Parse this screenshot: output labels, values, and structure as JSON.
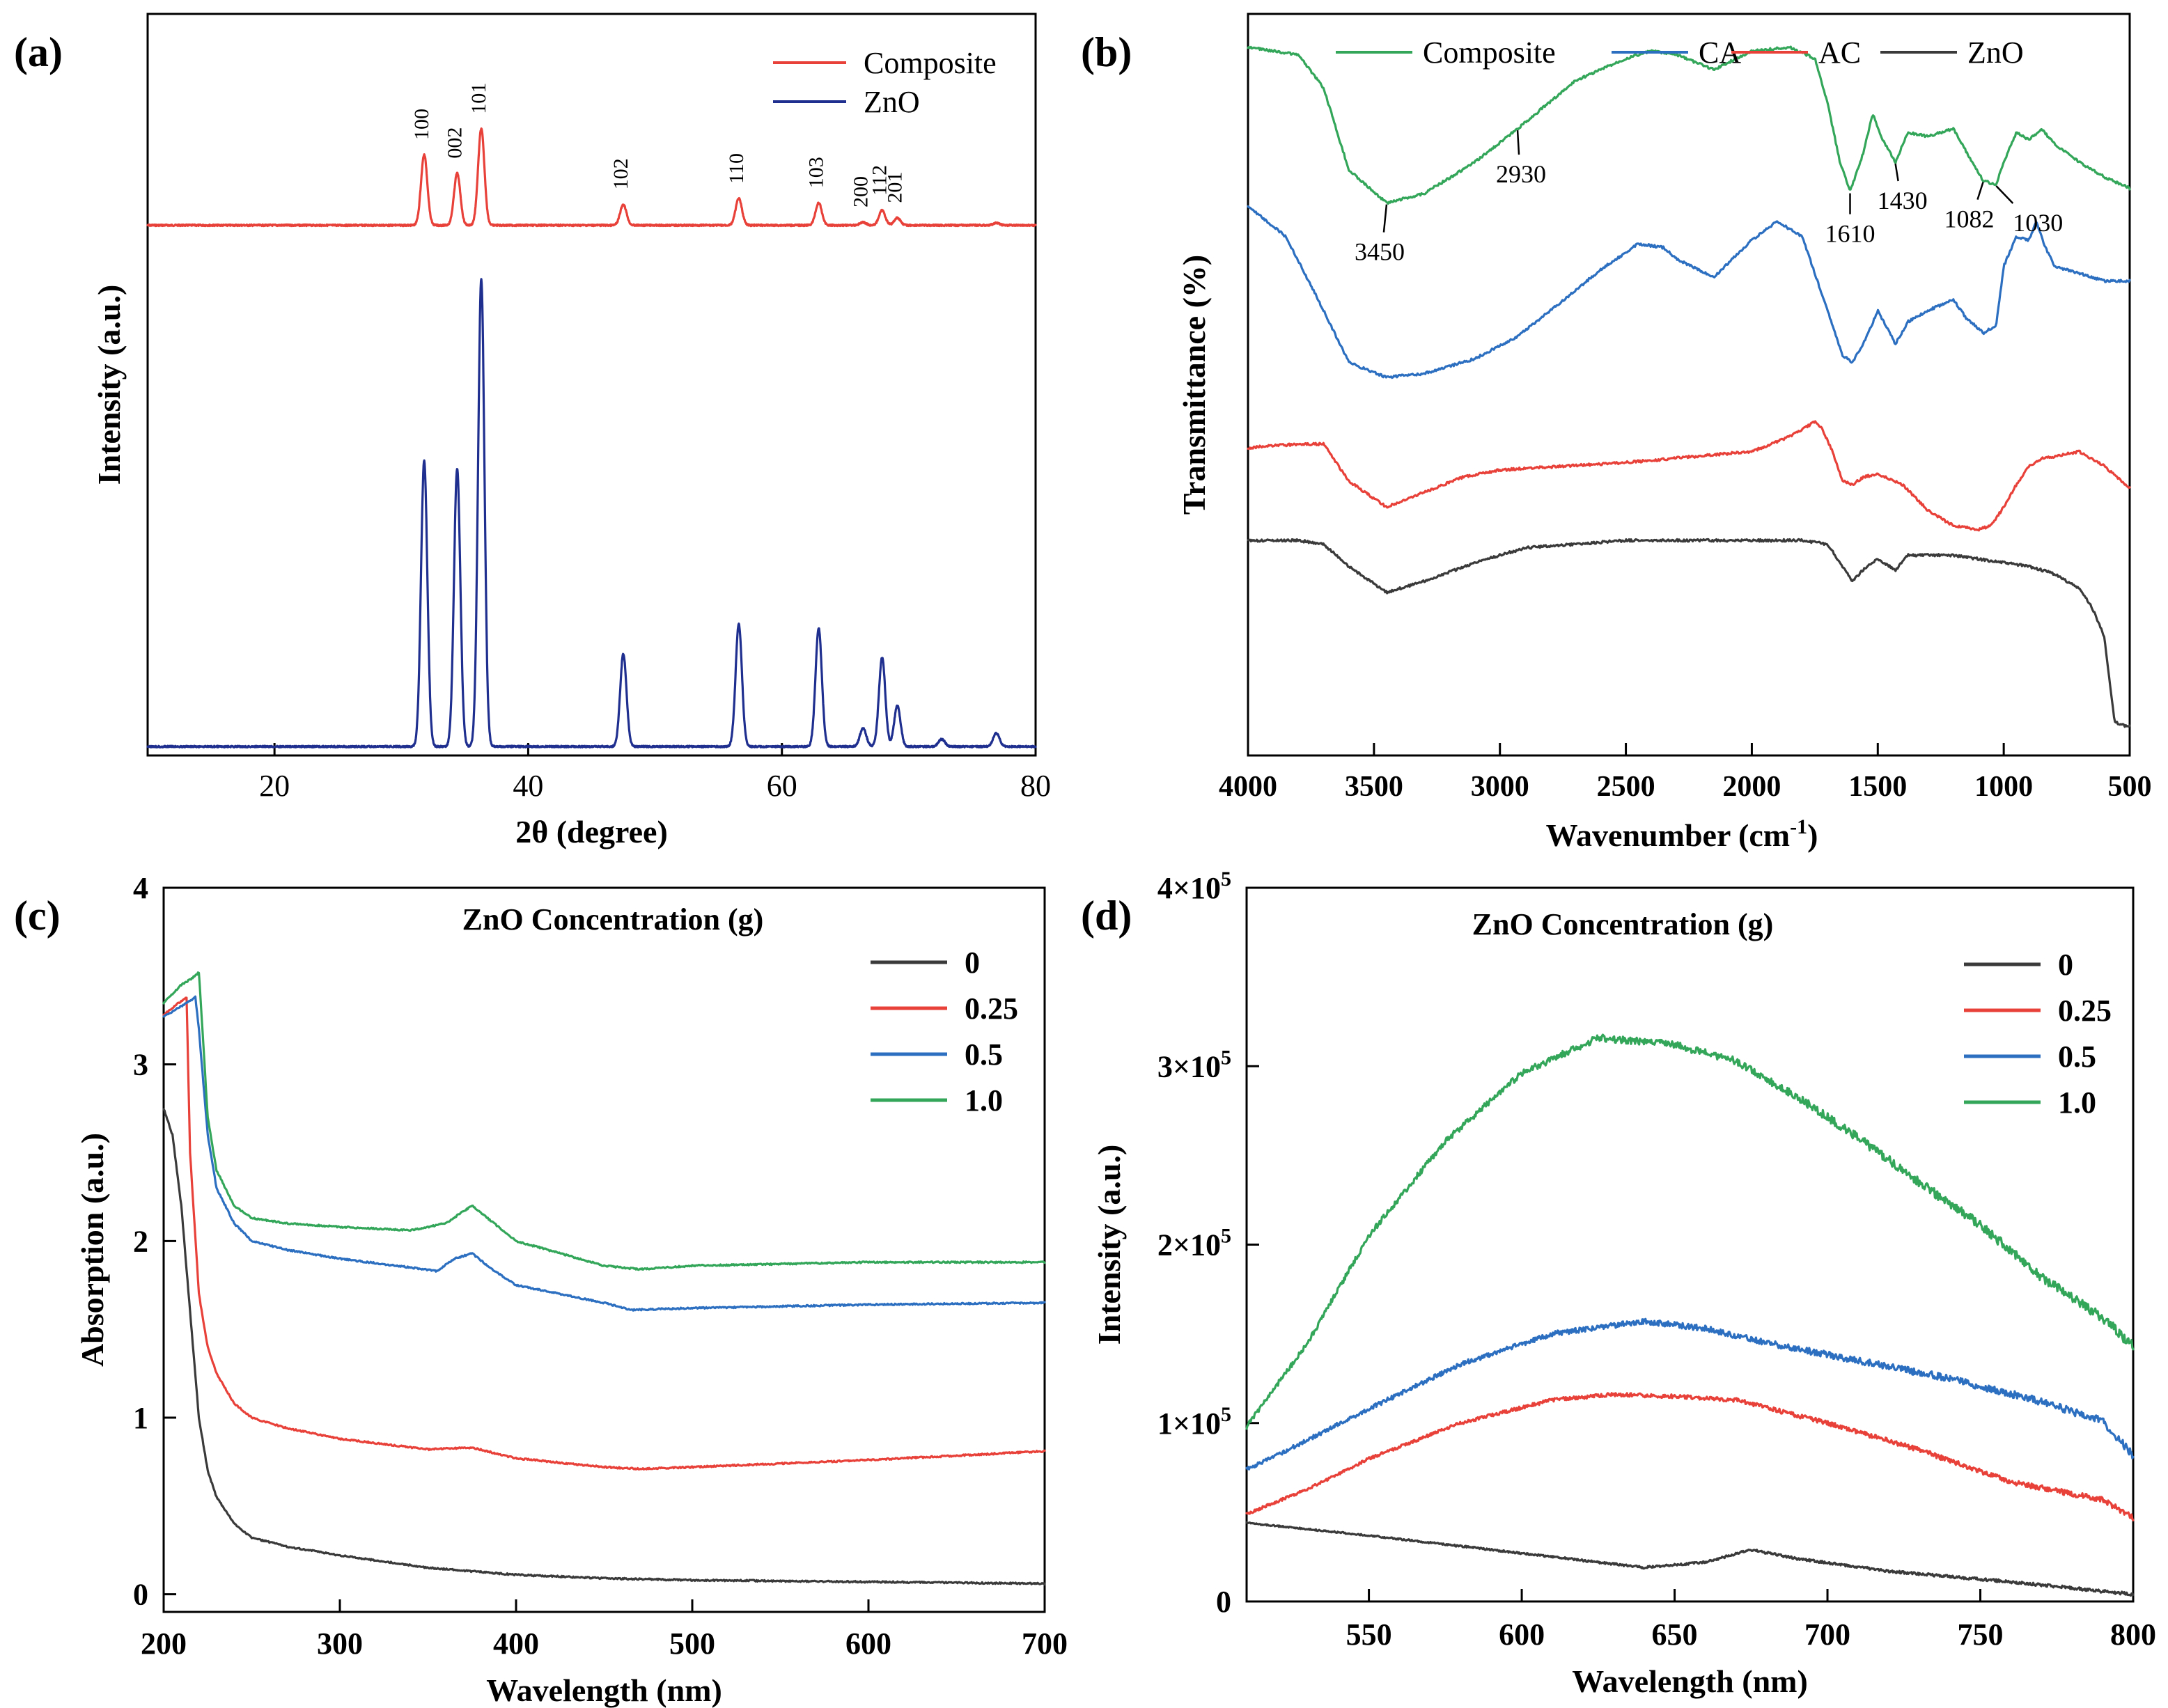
{
  "chart_data": [
    {
      "panel": "(a)",
      "type": "line",
      "xlabel": "2θ (degree)",
      "ylabel": "Intensity (a.u.)",
      "xlim": [
        10,
        80
      ],
      "ylim": [
        0,
        1
      ],
      "xticks": [
        20,
        40,
        60,
        80
      ],
      "yticks": [],
      "legend": [
        "Composite",
        "ZnO"
      ],
      "legend_position": "top-right",
      "annotations": [
        "100",
        "002",
        "101",
        "102",
        "110",
        "103",
        "200",
        "112",
        "201"
      ],
      "peaks": [
        31.8,
        34.4,
        36.3,
        47.5,
        56.6,
        62.9,
        66.4,
        67.9,
        69.1,
        72.6,
        76.9
      ],
      "series": [
        {
          "name": "Composite",
          "color": "#e8413a",
          "baseline": 0.715,
          "heights": [
            0.095,
            0.07,
            0.13,
            0.028,
            0.036,
            0.03,
            0.004,
            0.02,
            0.01,
            0.0,
            0.003
          ]
        },
        {
          "name": "ZnO",
          "color": "#1f2f8f",
          "baseline": 0.012,
          "heights": [
            0.385,
            0.375,
            0.63,
            0.125,
            0.165,
            0.16,
            0.025,
            0.12,
            0.055,
            0.01,
            0.018
          ]
        }
      ]
    },
    {
      "panel": "(b)",
      "type": "line",
      "xlabel": "Wavenumber (cm-1)",
      "xlabel_main": "Wavenumber (cm",
      "xlabel_sup": "-1",
      "xlabel_tail": ")",
      "ylabel": "Transmittance (%)",
      "xlim": [
        4000,
        500
      ],
      "ylim": [
        0,
        1
      ],
      "xticks": [
        4000,
        3500,
        3000,
        2500,
        2000,
        1500,
        1000,
        500
      ],
      "legend": [
        "Composite",
        "CA",
        "AC",
        "ZnO"
      ],
      "legend_position": "top",
      "annotations": [
        "3450",
        "2930",
        "1610",
        "1430",
        "1082",
        "1030"
      ],
      "series": [
        {
          "name": "Composite",
          "color": "#33a65a",
          "x": [
            4000,
            3800,
            3700,
            3600,
            3450,
            3300,
            3100,
            2930,
            2700,
            2500,
            2400,
            2300,
            2150,
            2000,
            1850,
            1750,
            1700,
            1650,
            1610,
            1560,
            1520,
            1480,
            1430,
            1380,
            1300,
            1200,
            1150,
            1082,
            1030,
            1000,
            950,
            900,
            850,
            800,
            700,
            600,
            500
          ],
          "y": [
            0.955,
            0.945,
            0.9,
            0.79,
            0.745,
            0.758,
            0.8,
            0.845,
            0.91,
            0.94,
            0.95,
            0.945,
            0.925,
            0.95,
            0.955,
            0.94,
            0.88,
            0.8,
            0.76,
            0.81,
            0.865,
            0.83,
            0.8,
            0.84,
            0.835,
            0.845,
            0.815,
            0.775,
            0.77,
            0.8,
            0.84,
            0.83,
            0.845,
            0.825,
            0.8,
            0.78,
            0.765
          ]
        },
        {
          "name": "CA",
          "color": "#2c6fc1",
          "x": [
            4000,
            3850,
            3700,
            3600,
            3450,
            3300,
            3100,
            2930,
            2800,
            2600,
            2450,
            2350,
            2300,
            2150,
            2000,
            1900,
            1800,
            1700,
            1640,
            1600,
            1550,
            1500,
            1430,
            1380,
            1300,
            1200,
            1150,
            1080,
            1030,
            1000,
            950,
            900,
            870,
            840,
            800,
            700,
            600,
            500
          ],
          "y": [
            0.74,
            0.7,
            0.6,
            0.53,
            0.51,
            0.515,
            0.535,
            0.565,
            0.6,
            0.655,
            0.69,
            0.685,
            0.67,
            0.645,
            0.695,
            0.72,
            0.7,
            0.6,
            0.54,
            0.53,
            0.56,
            0.6,
            0.555,
            0.585,
            0.6,
            0.615,
            0.59,
            0.57,
            0.58,
            0.66,
            0.7,
            0.695,
            0.72,
            0.69,
            0.66,
            0.65,
            0.64,
            0.64
          ]
        },
        {
          "name": "AC",
          "color": "#e8413a",
          "x": [
            4000,
            3800,
            3700,
            3600,
            3450,
            3300,
            3150,
            3000,
            2500,
            2000,
            1850,
            1750,
            1720,
            1680,
            1640,
            1600,
            1560,
            1500,
            1400,
            1300,
            1200,
            1100,
            1050,
            1000,
            950,
            900,
            850,
            700,
            600,
            500
          ],
          "y": [
            0.415,
            0.42,
            0.42,
            0.37,
            0.335,
            0.355,
            0.375,
            0.385,
            0.395,
            0.41,
            0.43,
            0.45,
            0.44,
            0.41,
            0.37,
            0.365,
            0.375,
            0.38,
            0.365,
            0.33,
            0.31,
            0.305,
            0.31,
            0.335,
            0.365,
            0.39,
            0.4,
            0.41,
            0.39,
            0.36
          ]
        },
        {
          "name": "ZnO",
          "color": "#3a3a3a",
          "x": [
            4000,
            3800,
            3700,
            3600,
            3450,
            3300,
            3100,
            2900,
            2500,
            2000,
            1800,
            1700,
            1640,
            1600,
            1560,
            1500,
            1430,
            1380,
            1300,
            1200,
            1000,
            900,
            800,
            700,
            650,
            600,
            580,
            560,
            520,
            500
          ],
          "y": [
            0.29,
            0.29,
            0.285,
            0.255,
            0.22,
            0.235,
            0.26,
            0.28,
            0.29,
            0.29,
            0.29,
            0.285,
            0.255,
            0.235,
            0.25,
            0.265,
            0.25,
            0.27,
            0.27,
            0.27,
            0.26,
            0.255,
            0.245,
            0.225,
            0.2,
            0.16,
            0.1,
            0.045,
            0.04,
            0.04
          ]
        }
      ]
    },
    {
      "panel": "(c)",
      "type": "line",
      "title": "ZnO Concentration (g)",
      "xlabel": "Wavelength (nm)",
      "ylabel": "Absorption (a.u.)",
      "xlim": [
        200,
        700
      ],
      "ylim": [
        -0.1,
        4
      ],
      "xticks": [
        200,
        300,
        400,
        500,
        600,
        700
      ],
      "yticks": [
        0,
        1,
        2,
        3,
        4
      ],
      "legend": [
        "0",
        "0.25",
        "0.5",
        "1.0"
      ],
      "legend_position": "top-right",
      "series": [
        {
          "name": "0",
          "color": "#3a3a3a",
          "x": [
            200,
            205,
            210,
            215,
            220,
            225,
            230,
            240,
            250,
            270,
            300,
            350,
            400,
            450,
            500,
            600,
            700
          ],
          "y": [
            2.75,
            2.6,
            2.2,
            1.6,
            1.0,
            0.7,
            0.55,
            0.4,
            0.32,
            0.27,
            0.22,
            0.15,
            0.11,
            0.09,
            0.08,
            0.07,
            0.06
          ]
        },
        {
          "name": "0.25",
          "color": "#e8413a",
          "x": [
            200,
            205,
            210,
            213,
            215,
            220,
            225,
            230,
            240,
            250,
            270,
            300,
            350,
            375,
            400,
            450,
            470,
            500,
            600,
            700
          ],
          "y": [
            3.28,
            3.32,
            3.36,
            3.38,
            2.5,
            1.7,
            1.4,
            1.25,
            1.08,
            1.0,
            0.94,
            0.88,
            0.82,
            0.83,
            0.77,
            0.72,
            0.71,
            0.72,
            0.76,
            0.81
          ]
        },
        {
          "name": "0.5",
          "color": "#2c6fc1",
          "x": [
            200,
            205,
            210,
            215,
            218,
            220,
            225,
            230,
            240,
            250,
            270,
            300,
            340,
            355,
            365,
            375,
            385,
            400,
            450,
            465,
            500,
            600,
            700
          ],
          "y": [
            3.27,
            3.3,
            3.33,
            3.36,
            3.38,
            3.2,
            2.6,
            2.3,
            2.1,
            2.0,
            1.95,
            1.9,
            1.85,
            1.83,
            1.9,
            1.93,
            1.85,
            1.75,
            1.65,
            1.61,
            1.62,
            1.64,
            1.65
          ]
        },
        {
          "name": "1.0",
          "color": "#33a65a",
          "x": [
            200,
            205,
            210,
            215,
            220,
            222,
            225,
            230,
            240,
            250,
            270,
            300,
            340,
            360,
            375,
            385,
            400,
            450,
            470,
            500,
            600,
            700
          ],
          "y": [
            3.35,
            3.4,
            3.45,
            3.48,
            3.52,
            3.2,
            2.7,
            2.4,
            2.2,
            2.13,
            2.1,
            2.08,
            2.06,
            2.1,
            2.2,
            2.12,
            2.0,
            1.86,
            1.84,
            1.86,
            1.88,
            1.88
          ]
        }
      ]
    },
    {
      "panel": "(d)",
      "type": "line",
      "title": "ZnO Concentration (g)",
      "xlabel": "Wavelength (nm)",
      "ylabel": "Intensity (a.u.)",
      "xlim": [
        510,
        800
      ],
      "ylim": [
        0,
        400000
      ],
      "xticks": [
        550,
        600,
        650,
        700,
        750,
        800
      ],
      "yticks": [
        "0",
        "1×10^5",
        "2×10^5",
        "3×10^5",
        "4×10^5"
      ],
      "ytick_values": [
        0,
        100000,
        200000,
        300000,
        400000
      ],
      "legend": [
        "0",
        "0.25",
        "0.5",
        "1.0"
      ],
      "legend_position": "top-right",
      "series": [
        {
          "name": "0",
          "color": "#3a3a3a",
          "x": [
            510,
            550,
            600,
            640,
            660,
            675,
            690,
            720,
            760,
            800
          ],
          "y": [
            44000,
            37000,
            27000,
            19000,
            22000,
            29000,
            24000,
            17000,
            11000,
            4000
          ]
        },
        {
          "name": "0.25",
          "color": "#e8413a",
          "x": [
            510,
            530,
            550,
            580,
            610,
            630,
            650,
            670,
            700,
            730,
            760,
            790,
            800
          ],
          "y": [
            49000,
            63000,
            80000,
            100000,
            113000,
            116000,
            115000,
            113000,
            100000,
            85000,
            67000,
            57000,
            47000
          ]
        },
        {
          "name": "0.5",
          "color": "#2c6fc1",
          "x": [
            510,
            520,
            550,
            580,
            610,
            640,
            660,
            680,
            710,
            740,
            770,
            790,
            800
          ],
          "y": [
            74000,
            82000,
            108000,
            133000,
            150000,
            157000,
            153000,
            145000,
            135000,
            125000,
            112000,
            101000,
            82000
          ]
        },
        {
          "name": "1.0",
          "color": "#33a65a",
          "x": [
            510,
            530,
            550,
            575,
            600,
            625,
            650,
            670,
            690,
            710,
            730,
            750,
            770,
            790,
            800
          ],
          "y": [
            98000,
            145000,
            205000,
            258000,
            296000,
            316000,
            312000,
            303000,
            283000,
            260000,
            235000,
            211000,
            182000,
            159000,
            143000
          ]
        }
      ]
    }
  ],
  "panel_labels": {
    "a": "(a)",
    "b": "(b)",
    "c": "(c)",
    "d": "(d)"
  }
}
